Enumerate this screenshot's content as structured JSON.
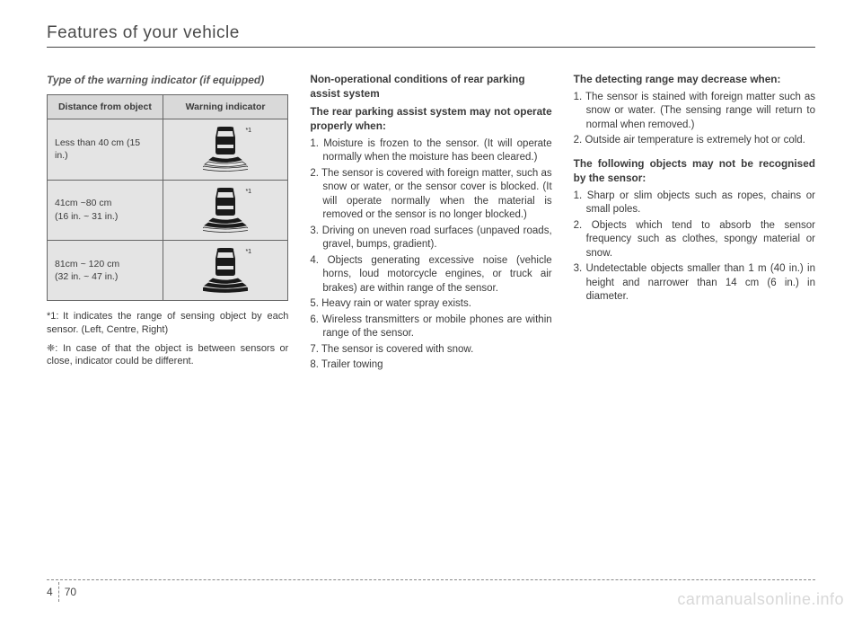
{
  "header": {
    "title": "Features of your vehicle"
  },
  "col1": {
    "sub_heading": "Type of the warning indicator (if equipped)",
    "table": {
      "headers": [
        "Distance from object",
        "Warning indicator"
      ],
      "rows": [
        {
          "dist": "Less than 40 cm (15 in.)",
          "arcs": 1
        },
        {
          "dist": "41cm ~80 cm\n(16 in. ~ 31 in.)",
          "arcs": 2
        },
        {
          "dist": "81cm ~ 120 cm\n(32 in. ~ 47 in.)",
          "arcs": 3
        }
      ],
      "star_label": "*1"
    },
    "footnote1_prefix": "*1:",
    "footnote1": "It indicates the range of sensing object by each sensor. (Left, Centre, Right)",
    "footnote2_prefix": "❈:",
    "footnote2": "In case of that the object is between sensors or close, indicator could be different."
  },
  "col2": {
    "h1": "Non-operational conditions of rear parking assist system",
    "p1": "The rear parking assist system may not operate properly when:",
    "items": [
      "1. Moisture is frozen to the sensor. (It will operate normally when the moisture has been cleared.)",
      "2. The sensor is covered with foreign matter, such as snow or water, or the sensor cover is blocked. (It will operate normally when the material is removed or the sensor is no longer blocked.)",
      "3. Driving on uneven road surfaces (unpaved roads, gravel, bumps, gradient).",
      "4. Objects generating excessive noise (vehicle horns, loud motorcycle engines, or truck air brakes) are within range of the sensor.",
      "5. Heavy rain or water spray exists.",
      "6. Wireless transmitters or mobile phones are within range of the sensor.",
      "7. The sensor is covered with snow.",
      "8. Trailer towing"
    ]
  },
  "col3": {
    "h1": "The detecting range may decrease when:",
    "items1": [
      "1. The sensor is stained with foreign matter such as snow or water. (The sensing range will return to normal when removed.)",
      "2. Outside air temperature is extremely hot or cold."
    ],
    "h2": "The following objects may not be recognised by the sensor:",
    "items2": [
      "1. Sharp or slim objects such as ropes, chains or small poles.",
      "2. Objects which tend to absorb the sensor frequency such as clothes, spongy material or snow.",
      "3. Undetectable objects smaller than 1 m (40 in.) in height and narrower than 14 cm (6 in.) in diameter."
    ]
  },
  "footer": {
    "chapter": "4",
    "page": "70",
    "watermark": "carmanualsonline.info"
  }
}
